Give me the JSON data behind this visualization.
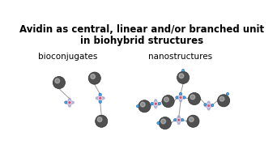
{
  "title_line1": "Avidin as central, linear and/or branched unit",
  "title_line2": "in biohybrid structures",
  "label_left": "bioconjugates",
  "label_right": "nanostructures",
  "bg_color": "#ffffff",
  "title_fontsize": 8.5,
  "label_fontsize": 7.5,
  "sphere_color_center": "#505050",
  "sphere_color_edge": "#303030",
  "avidin_petal_color": "#9999cc",
  "avidin_center_color": "#cc2255",
  "biotin_color": "#44aadd",
  "biotin_edge_color": "#2266aa",
  "line_color": "#999999",
  "sphere_r": 0.052,
  "biotin_r": 0.011,
  "avidin_size": 0.058
}
